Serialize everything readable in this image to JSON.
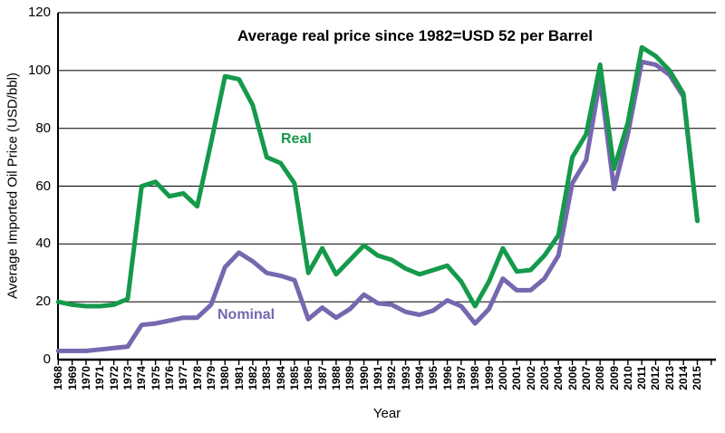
{
  "chart": {
    "title_annotation": "Average real price since 1982=USD 52 per Barrel",
    "ylabel": "Average Imported Oil Price (USD/bbl)",
    "xlabel": "Year",
    "series_labels": {
      "real": "Real",
      "nominal": "Nominal"
    },
    "colors": {
      "real": "#149a4a",
      "nominal": "#7667ae",
      "grid": "#1a1a1a",
      "axis": "#000000",
      "background": "#ffffff"
    }
  },
  "chart_data": {
    "type": "line",
    "title": "Average real price since 1982=USD 52 per Barrel",
    "xlabel": "Year",
    "ylabel": "Average Imported Oil Price (USD/bbl)",
    "ylim": [
      0,
      120
    ],
    "yticks": [
      0,
      20,
      40,
      60,
      80,
      100,
      120
    ],
    "grid": "horizontal",
    "legend_position": "inline-labels",
    "categories": [
      "1968",
      "1969",
      "1970",
      "1971",
      "1972",
      "1973",
      "1974",
      "1975",
      "1976",
      "1977",
      "1978",
      "1979",
      "1980",
      "1981",
      "1982",
      "1983",
      "1984",
      "1985",
      "1986",
      "1987",
      "1988",
      "1989",
      "1990",
      "1991",
      "1992",
      "1993",
      "1994",
      "1995",
      "1996",
      "1997",
      "1998",
      "1999",
      "2000",
      "2001",
      "2002",
      "2003",
      "2004",
      "2006",
      "2007",
      "2008",
      "2009",
      "2010",
      "2011",
      "2012",
      "2013",
      "2014",
      "2015"
    ],
    "series": [
      {
        "name": "Real",
        "color_key": "real",
        "values": [
          20,
          19,
          18.5,
          18.5,
          19,
          21,
          60,
          61.5,
          56.5,
          57.5,
          53,
          75,
          98,
          97,
          88,
          70,
          68,
          61,
          30,
          38.5,
          29.5,
          34.5,
          39.5,
          36,
          34.5,
          31.5,
          29.5,
          31,
          32.5,
          27,
          18.5,
          27,
          38.5,
          30.5,
          31,
          36,
          43,
          70,
          78,
          102,
          66,
          82,
          108,
          105,
          100,
          92,
          48
        ]
      },
      {
        "name": "Nominal",
        "color_key": "nominal",
        "values": [
          3,
          3,
          3,
          3.5,
          4,
          4.5,
          12,
          12.5,
          13.5,
          14.5,
          14.5,
          19,
          32,
          37,
          34,
          30,
          29,
          27.5,
          14,
          18,
          14.5,
          17.5,
          22.5,
          19.5,
          19,
          16.5,
          15.5,
          17,
          20.5,
          18.5,
          12.5,
          17.5,
          28,
          24,
          24,
          28,
          36,
          61,
          69,
          97,
          59,
          78,
          103,
          102,
          98.5,
          91,
          48
        ]
      }
    ]
  }
}
